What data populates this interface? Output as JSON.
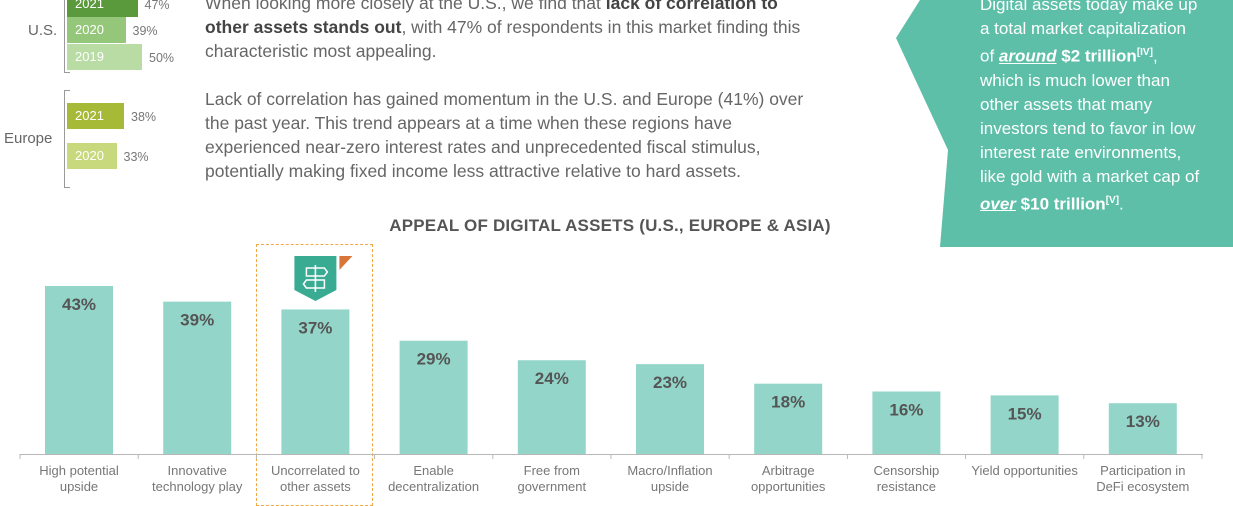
{
  "mini_chart": {
    "regions": [
      {
        "label": "U.S.",
        "bars": [
          {
            "year": "2021",
            "value": 47,
            "value_label": "47%",
            "color": "#5a9a3c"
          },
          {
            "year": "2020",
            "value": 39,
            "value_label": "39%",
            "color": "#94c77a"
          },
          {
            "year": "2019",
            "value": 50,
            "value_label": "50%",
            "color": "#b9dca4"
          }
        ]
      },
      {
        "label": "Europe",
        "bars": [
          {
            "year": "2021",
            "value": 38,
            "value_label": "38%",
            "color": "#a6ba38"
          },
          {
            "year": "2020",
            "value": 33,
            "value_label": "33%",
            "color": "#c8d87c"
          }
        ]
      }
    ]
  },
  "body_text": {
    "para1_line1_a": "When looking more closely at the U.S., we find that ",
    "para1_line1_b": "lack of correlation to",
    "para1_line2_a": "other assets stands out",
    "para1_line2_b": ", with 47% of respondents in this market finding this",
    "para1_line3": "characteristic most appealing.",
    "para2_lines": [
      "Lack of correlation has gained momentum in the U.S. and Europe (41%) over",
      "the past year. This trend appears at a time when these regions have",
      "experienced near-zero interest rates and unprecedented fiscal stimulus,",
      "potentially making fixed income less attractive relative to hard assets."
    ]
  },
  "callout": {
    "line1": "Digital assets today make up",
    "line2": "a total market capitalization",
    "line3_a": "of ",
    "line3_em": "around",
    "line3_b": "$2 trillion",
    "line3_sup": "[IV]",
    "line3_c": ",",
    "line4": "which is much lower than",
    "line5": "other assets that many",
    "line6": "investors tend to favor in low",
    "line7": "interest rate environments,",
    "line8": "like gold with a market cap of",
    "line9_em": "over",
    "line9_b": "$10 trillion",
    "line9_sup": "[V]",
    "line9_c": ".",
    "bg_color": "#5dbfa8"
  },
  "chart_data": {
    "type": "bar",
    "title": "APPEAL OF DIGITAL ASSETS (U.S., EUROPE & ASIA)",
    "categories": [
      [
        "High potential",
        "upside"
      ],
      [
        "Innovative",
        "technology play"
      ],
      [
        "Uncorrelated to",
        "other assets"
      ],
      [
        "Enable",
        "decentralization"
      ],
      [
        "Free from",
        "government"
      ],
      [
        "Macro/Inflation",
        "upside"
      ],
      [
        "Arbitrage",
        "opportunities"
      ],
      [
        "Censorship",
        "resistance"
      ],
      [
        "Yield opportunities"
      ],
      [
        "Participation in",
        "DeFi ecosystem"
      ]
    ],
    "values": [
      43,
      39,
      37,
      29,
      24,
      23,
      18,
      16,
      15,
      13
    ],
    "value_labels": [
      "43%",
      "39%",
      "37%",
      "29%",
      "24%",
      "23%",
      "18%",
      "16%",
      "15%",
      "13%"
    ],
    "ylim": [
      0,
      43
    ],
    "highlighted_index": 2,
    "bar_color": "#93d6c9",
    "highlight_color": "#f0a848",
    "icon": "signpost-icon"
  }
}
